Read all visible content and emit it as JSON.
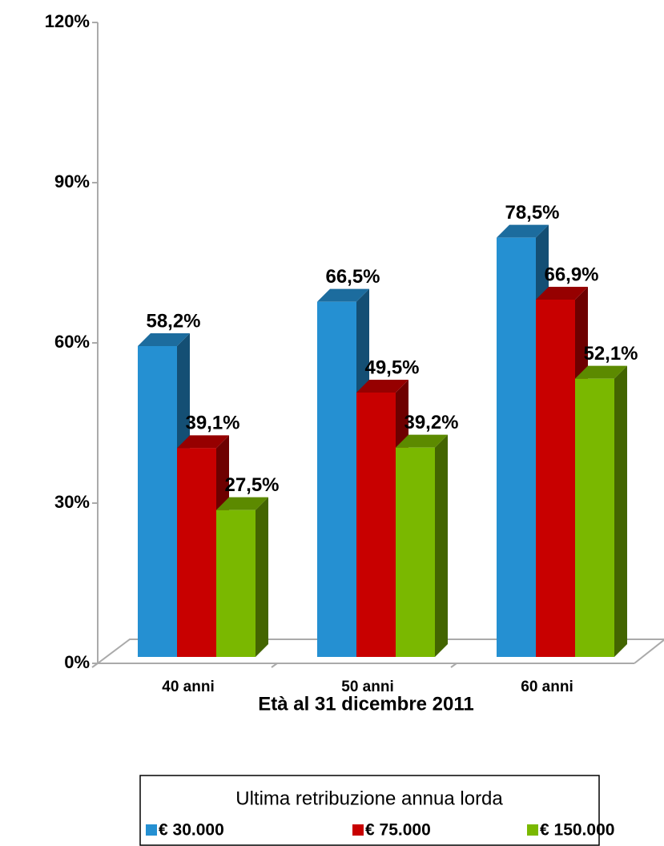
{
  "chart_data": {
    "type": "bar3d",
    "categories": [
      "40 anni",
      "50 anni",
      "60 anni"
    ],
    "series": [
      {
        "name": "€ 30.000",
        "color": "#2590d2",
        "values": [
          58.2,
          66.5,
          78.5
        ],
        "value_labels": [
          "58,2%",
          "66,5%",
          "78,5%"
        ]
      },
      {
        "name": "€ 75.000",
        "color": "#c80000",
        "values": [
          39.1,
          49.5,
          66.9
        ],
        "value_labels": [
          "39,1%",
          "49,5%",
          "66,9%"
        ]
      },
      {
        "name": "€ 150.000",
        "color": "#7ab800",
        "values": [
          27.5,
          39.2,
          52.1
        ],
        "value_labels": [
          "27,5%",
          "39,2%",
          "52,1%"
        ]
      }
    ],
    "ylim": [
      0,
      120
    ],
    "yticks": [
      {
        "value": 0,
        "label": "0%"
      },
      {
        "value": 30,
        "label": "30%"
      },
      {
        "value": 60,
        "label": "60%"
      },
      {
        "value": 90,
        "label": "90%"
      },
      {
        "value": 120,
        "label": "120%"
      }
    ],
    "xlabel": "Età al 31 dicembre 2011",
    "legend_title": "Ultima retribuzione annua lorda",
    "legend": "bottom"
  }
}
